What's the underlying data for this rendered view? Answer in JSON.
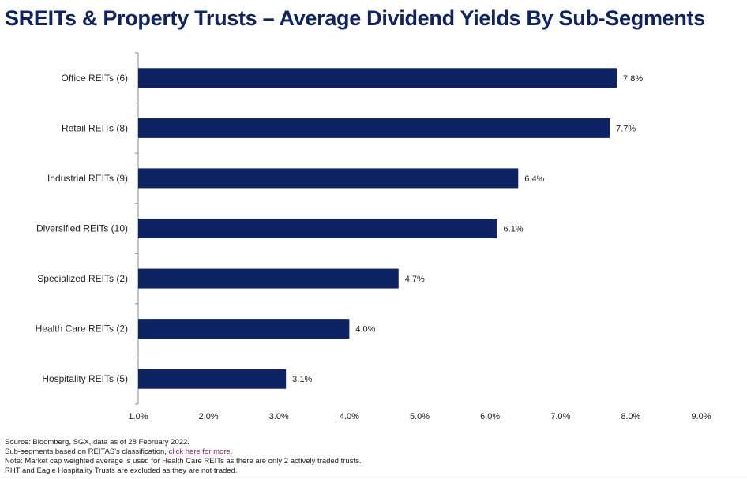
{
  "page": {
    "title": "SREITs & Property Trusts – Average Dividend Yields By Sub-Segments"
  },
  "colors": {
    "title": "#0d2364",
    "bar": "#0d2364",
    "axis": "#888888"
  },
  "chart_data": {
    "type": "bar",
    "orientation": "horizontal",
    "title": "",
    "xlabel": "",
    "ylabel": "",
    "categories": [
      "Office REITs (6)",
      "Retail REITs (8)",
      "Industrial REITs (9)",
      "Diversified REITs (10)",
      "Specialized REITs (2)",
      "Health Care REITs  (2)",
      "Hospitality REITs (5)"
    ],
    "values": [
      7.8,
      7.7,
      6.4,
      6.1,
      4.7,
      4.0,
      3.1
    ],
    "value_labels": [
      "7.8%",
      "7.7%",
      "6.4%",
      "6.1%",
      "4.7%",
      "4.0%",
      "3.1%"
    ],
    "xlim": [
      1.0,
      9.0
    ],
    "x_ticks": [
      1.0,
      2.0,
      3.0,
      4.0,
      5.0,
      6.0,
      7.0,
      8.0,
      9.0
    ],
    "x_tick_labels": [
      "1.0%",
      "2.0%",
      "3.0%",
      "4.0%",
      "5.0%",
      "6.0%",
      "7.0%",
      "8.0%",
      "9.0%"
    ],
    "grid": false,
    "legend": "none"
  },
  "footer": {
    "line1": "Source:  Bloomberg,  SGX, data as of 28 February  2022.",
    "line2_prefix": "Sub-segments  based on REITAS's classification, ",
    "line2_link": "click  here for more.",
    "line3": "Note:  Market cap weighted  average is used for Health  Care REITs as there are only 2 actively traded trusts.",
    "line4": "RHT and Eagle Hospitality  Trusts are excluded  as they are not traded."
  }
}
